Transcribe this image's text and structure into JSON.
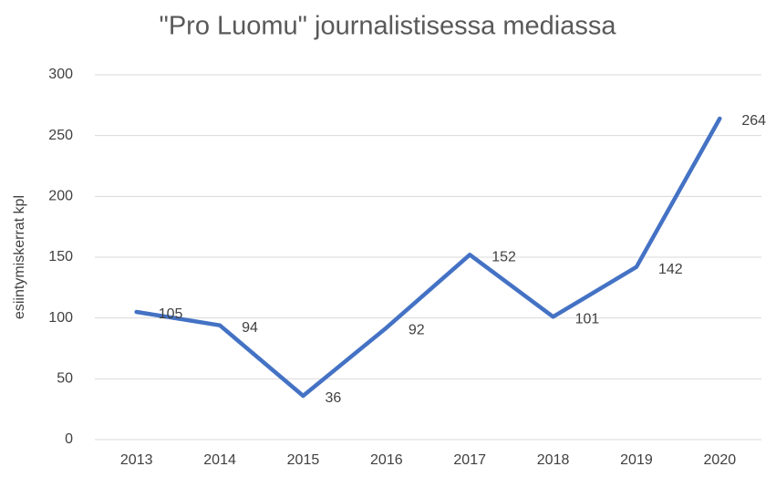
{
  "chart_data": {
    "type": "line",
    "title": "\"Pro Luomu\" journalistisessa mediassa",
    "y_label": "esiintymiskerrat kpl",
    "categories": [
      "2013",
      "2014",
      "2015",
      "2016",
      "2017",
      "2018",
      "2019",
      "2020"
    ],
    "values": [
      105,
      94,
      36,
      92,
      152,
      101,
      142,
      264
    ],
    "color": "#4472c4",
    "ylim": [
      0,
      300
    ],
    "yticks": [
      0,
      50,
      100,
      150,
      200,
      250,
      300
    ],
    "grid": true,
    "data_labels": true
  }
}
